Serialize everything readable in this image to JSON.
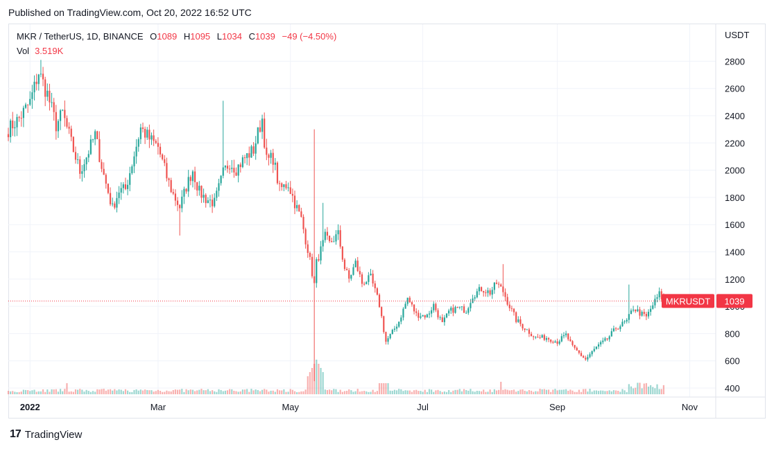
{
  "header": {
    "published": "Published on TradingView.com, Oct 20, 2022 16:52 UTC"
  },
  "legend": {
    "symbol": "MKR / TetherUS, 1D, BINANCE",
    "o_label": "O",
    "o_value": "1089",
    "h_label": "H",
    "h_value": "1095",
    "l_label": "L",
    "l_value": "1034",
    "c_label": "C",
    "c_value": "1039",
    "change": "−49 (−4.50%)",
    "vol_label": "Vol",
    "vol_value": "3.519K"
  },
  "footer": {
    "brand": "TradingView",
    "logo": "17"
  },
  "colors": {
    "up": "#26a69a",
    "down": "#ef5350",
    "grid": "#f0f3fa",
    "accent": "#f23645"
  },
  "chart_data": {
    "type": "candlestick",
    "axis_unit": "USDT",
    "y_ticks": [
      400,
      600,
      800,
      1000,
      1200,
      1400,
      1600,
      1800,
      2000,
      2200,
      2400,
      2600,
      2800
    ],
    "ylim": [
      340,
      2940
    ],
    "x_ticks": [
      {
        "label": "2022",
        "date": "2022-01-01",
        "bold": true
      },
      {
        "label": "Mar",
        "date": "2022-03-01"
      },
      {
        "label": "May",
        "date": "2022-05-01"
      },
      {
        "label": "Jul",
        "date": "2022-07-01"
      },
      {
        "label": "Sep",
        "date": "2022-09-01"
      },
      {
        "label": "Nov",
        "date": "2022-11-01"
      }
    ],
    "xlim": [
      "2021-12-22",
      "2022-11-13"
    ],
    "last_price": {
      "symbol": "MKRUSDT",
      "value": 1039
    },
    "anchors": [
      [
        "2021-12-22",
        2300
      ],
      [
        "2021-12-27",
        2380
      ],
      [
        "2022-01-01",
        2500
      ],
      [
        "2022-01-05",
        2720
      ],
      [
        "2022-01-09",
        2560
      ],
      [
        "2022-01-13",
        2330
      ],
      [
        "2022-01-16",
        2420
      ],
      [
        "2022-01-20",
        2200
      ],
      [
        "2022-01-24",
        1990
      ],
      [
        "2022-01-27",
        2100
      ],
      [
        "2022-01-31",
        2260
      ],
      [
        "2022-02-04",
        1960
      ],
      [
        "2022-02-08",
        1720
      ],
      [
        "2022-02-11",
        1850
      ],
      [
        "2022-02-14",
        1860
      ],
      [
        "2022-02-17",
        2050
      ],
      [
        "2022-02-21",
        2310
      ],
      [
        "2022-02-25",
        2230
      ],
      [
        "2022-03-01",
        2170
      ],
      [
        "2022-03-05",
        1950
      ],
      [
        "2022-03-08",
        1820
      ],
      [
        "2022-03-11",
        1730
      ],
      [
        "2022-03-14",
        1880
      ],
      [
        "2022-03-17",
        2000
      ],
      [
        "2022-03-20",
        1840
      ],
      [
        "2022-03-23",
        1790
      ],
      [
        "2022-03-27",
        1760
      ],
      [
        "2022-03-31",
        1980
      ],
      [
        "2022-04-03",
        2060
      ],
      [
        "2022-04-06",
        2010
      ],
      [
        "2022-04-10",
        2090
      ],
      [
        "2022-04-14",
        2150
      ],
      [
        "2022-04-16",
        2270
      ],
      [
        "2022-04-18",
        2380
      ],
      [
        "2022-04-20",
        2070
      ],
      [
        "2022-04-23",
        2090
      ],
      [
        "2022-04-26",
        1860
      ],
      [
        "2022-04-30",
        1900
      ],
      [
        "2022-05-03",
        1760
      ],
      [
        "2022-05-06",
        1640
      ],
      [
        "2022-05-09",
        1420
      ],
      [
        "2022-05-12",
        1160
      ],
      [
        "2022-05-13",
        1320
      ],
      [
        "2022-05-17",
        1510
      ],
      [
        "2022-05-19",
        1460
      ],
      [
        "2022-05-23",
        1530
      ],
      [
        "2022-05-26",
        1280
      ],
      [
        "2022-05-28",
        1200
      ],
      [
        "2022-05-31",
        1320
      ],
      [
        "2022-06-03",
        1170
      ],
      [
        "2022-06-07",
        1210
      ],
      [
        "2022-06-11",
        1010
      ],
      [
        "2022-06-14",
        740
      ],
      [
        "2022-06-17",
        810
      ],
      [
        "2022-06-20",
        890
      ],
      [
        "2022-06-24",
        1060
      ],
      [
        "2022-06-28",
        940
      ],
      [
        "2022-07-03",
        930
      ],
      [
        "2022-07-06",
        1010
      ],
      [
        "2022-07-10",
        870
      ],
      [
        "2022-07-13",
        960
      ],
      [
        "2022-07-17",
        990
      ],
      [
        "2022-07-21",
        970
      ],
      [
        "2022-07-24",
        1080
      ],
      [
        "2022-07-28",
        1130
      ],
      [
        "2022-08-01",
        1100
      ],
      [
        "2022-08-04",
        1170
      ],
      [
        "2022-08-07",
        1110
      ],
      [
        "2022-08-10",
        1000
      ],
      [
        "2022-08-13",
        900
      ],
      [
        "2022-08-17",
        840
      ],
      [
        "2022-08-22",
        770
      ],
      [
        "2022-08-27",
        770
      ],
      [
        "2022-09-01",
        740
      ],
      [
        "2022-09-05",
        790
      ],
      [
        "2022-09-08",
        700
      ],
      [
        "2022-09-12",
        640
      ],
      [
        "2022-09-14",
        610
      ],
      [
        "2022-09-19",
        700
      ],
      [
        "2022-09-24",
        760
      ],
      [
        "2022-09-28",
        840
      ],
      [
        "2022-10-03",
        890
      ],
      [
        "2022-10-06",
        990
      ],
      [
        "2022-10-09",
        950
      ],
      [
        "2022-10-12",
        920
      ],
      [
        "2022-10-15",
        1010
      ],
      [
        "2022-10-18",
        1090
      ],
      [
        "2022-10-20",
        1039
      ]
    ],
    "spikes": [
      {
        "date": "2022-05-12",
        "high": 2300,
        "low": 450
      },
      {
        "date": "2022-05-16",
        "high": 1760
      },
      {
        "date": "2022-08-07",
        "high": 1310
      },
      {
        "date": "2022-10-04",
        "high": 1160
      },
      {
        "date": "2022-01-06",
        "high": 2810
      },
      {
        "date": "2022-03-31",
        "high": 2510
      },
      {
        "date": "2022-03-11",
        "low": 1520
      }
    ]
  }
}
